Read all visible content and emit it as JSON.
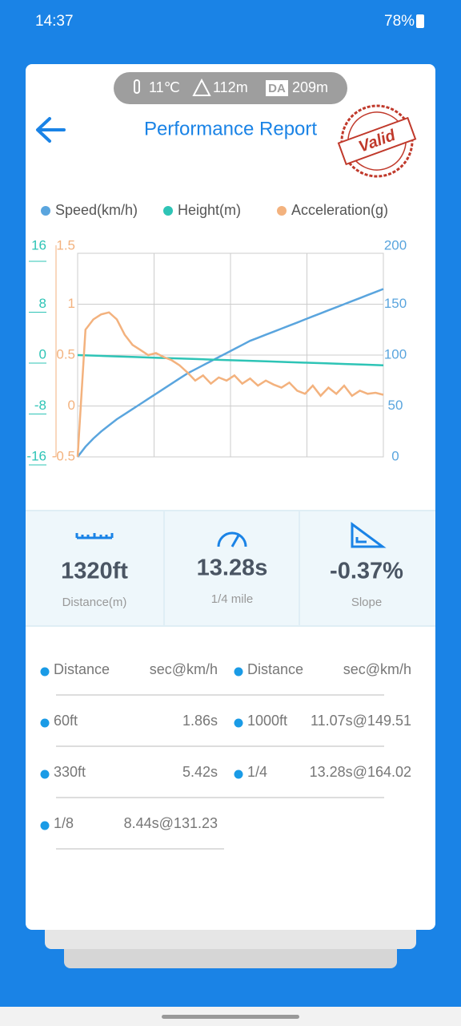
{
  "status_bar": {
    "time": "14:37",
    "battery": "78%"
  },
  "conditions": {
    "temperature": "11℃",
    "altitude": "112m",
    "da_badge": "DA",
    "density_altitude": "209m"
  },
  "header": {
    "title": "Performance Report",
    "stamp": "Valid"
  },
  "chart_data": {
    "type": "line",
    "series": [
      {
        "name": "Speed(km/h)",
        "color": "#5aa5de",
        "axis": "y2",
        "values": [
          0,
          10,
          18,
          25,
          31,
          37,
          42,
          47,
          52,
          57,
          62,
          67,
          72,
          77,
          82,
          86,
          90,
          94,
          98,
          102,
          106,
          110,
          114,
          117,
          120,
          123,
          126,
          129,
          132,
          135,
          138,
          141,
          144,
          147,
          150,
          153,
          156,
          159,
          162,
          165
        ]
      },
      {
        "name": "Height(m)",
        "color": "#2ec4b6",
        "axis": "y",
        "values": [
          0,
          -0.1,
          -0.2,
          -0.3,
          -0.4,
          -0.5,
          -0.6,
          -0.7,
          -0.8,
          -0.9,
          -1.0,
          -1.1,
          -1.2,
          -1.3,
          -1.4,
          -1.5,
          -1.6
        ]
      },
      {
        "name": "Acceleration(g)",
        "color": "#f3b27e",
        "axis": "y3",
        "values": [
          -0.5,
          0.75,
          0.85,
          0.9,
          0.92,
          0.85,
          0.7,
          0.6,
          0.55,
          0.5,
          0.52,
          0.48,
          0.45,
          0.4,
          0.33,
          0.25,
          0.3,
          0.22,
          0.28,
          0.25,
          0.3,
          0.22,
          0.27,
          0.2,
          0.25,
          0.21,
          0.18,
          0.23,
          0.15,
          0.12,
          0.2,
          0.1,
          0.18,
          0.12,
          0.2,
          0.1,
          0.15,
          0.12,
          0.13,
          0.11
        ]
      }
    ],
    "ylim": [
      -16,
      16
    ],
    "yticks": [
      -16,
      -8,
      0,
      8,
      16
    ],
    "ycolor": "#2ec4b6",
    "y3lim": [
      -0.5,
      1.5
    ],
    "y3ticks": [
      -0.5,
      0,
      0.5,
      1,
      1.5
    ],
    "y3color": "#f3b27e",
    "y2lim": [
      0,
      200
    ],
    "y2ticks": [
      0,
      50,
      100,
      150,
      200
    ],
    "y2color": "#5aa5de",
    "grid": true
  },
  "stats": [
    {
      "value": "1320ft",
      "label": "Distance(m)"
    },
    {
      "value": "13.28s",
      "label": "1/4 mile"
    },
    {
      "value": "-0.37%",
      "label": "Slope"
    }
  ],
  "table": {
    "left": [
      [
        "Distance",
        "sec@km/h"
      ],
      [
        "60ft",
        "1.86s"
      ],
      [
        "330ft",
        "5.42s"
      ],
      [
        "1/8",
        "8.44s@131.23"
      ]
    ],
    "right": [
      [
        "Distance",
        "sec@km/h"
      ],
      [
        "1000ft",
        "11.07s@149.51"
      ],
      [
        "1/4",
        "13.28s@164.02"
      ]
    ]
  }
}
